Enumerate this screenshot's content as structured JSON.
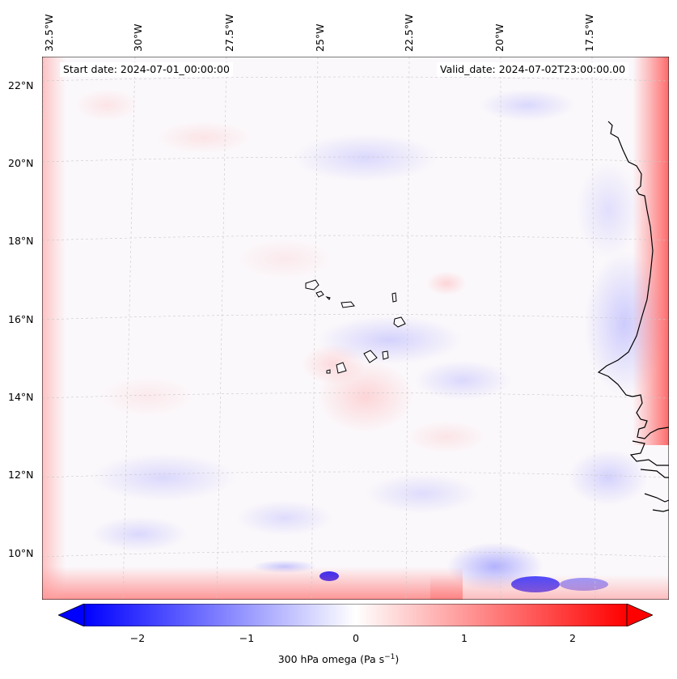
{
  "map": {
    "start_date": "Start date: 2024-07-01_00:00:00",
    "valid_date": "Valid_date: 2024-07-02T23:00:00.00",
    "lon_labels": [
      "32.5°W",
      "30°W",
      "27.5°W",
      "25°W",
      "22.5°W",
      "20°W",
      "17.5°W"
    ],
    "lat_labels": [
      "22°N",
      "20°N",
      "18°N",
      "16°N",
      "14°N",
      "12°N",
      "10°N"
    ],
    "field": "300 hPa omega",
    "colormap": "bwr",
    "colors": {
      "negative": "#0000ff",
      "zero": "#ffffff",
      "positive": "#ff0000",
      "coastline": "#000000"
    }
  },
  "colorbar": {
    "ticks": [
      "−2",
      "−1",
      "0",
      "1",
      "2"
    ],
    "label_text": "300 hPa omega (Pa s",
    "label_exp": "−1",
    "label_close": ")",
    "range": [
      -2.6,
      2.6
    ]
  }
}
